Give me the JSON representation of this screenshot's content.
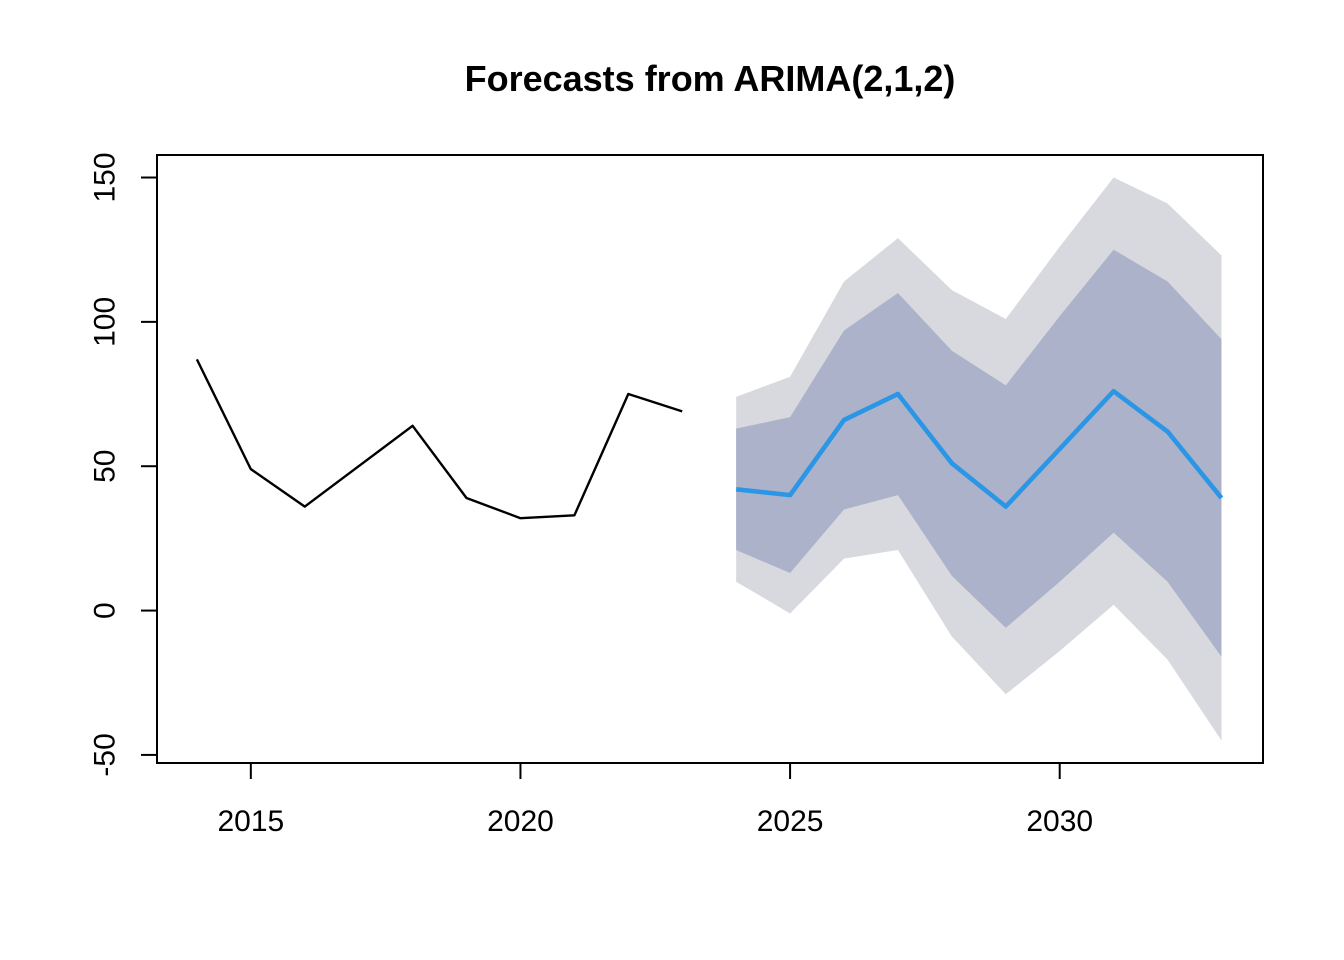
{
  "title": "Forecasts from ARIMA(2,1,2)",
  "colors": {
    "background": "#FFFFFF",
    "historical_line": "#000000",
    "forecast_line": "#2B96E5",
    "interval_80": "#ACB2CA",
    "interval_95": "#D8D8DF",
    "axis": "#000000",
    "tick_label": "#000000"
  },
  "chart_data": {
    "type": "line",
    "title": "Forecasts from ARIMA(2,1,2)",
    "xlabel": "",
    "ylabel": "",
    "grid": false,
    "legend": "none",
    "x_ticks": [
      2015,
      2020,
      2025,
      2030
    ],
    "x_tick_labels": [
      "2015",
      "2020",
      "2025",
      "2030"
    ],
    "y_ticks": [
      -50,
      0,
      50,
      100,
      150
    ],
    "y_tick_labels": [
      "-50",
      "0",
      "50",
      "100",
      "150"
    ],
    "xlim": [
      2013.26,
      2033.77
    ],
    "ylim": [
      -52.8,
      157.8
    ],
    "series": [
      {
        "name": "historical",
        "x": [
          2014,
          2015,
          2016,
          2017,
          2018,
          2019,
          2020,
          2021,
          2022,
          2023
        ],
        "values": [
          87,
          49,
          36,
          50,
          64,
          39,
          32,
          33,
          75,
          69
        ]
      },
      {
        "name": "forecast-mean",
        "x": [
          2024,
          2025,
          2026,
          2027,
          2028,
          2029,
          2030,
          2031,
          2032,
          2033
        ],
        "values": [
          42,
          40,
          66,
          75,
          51,
          36,
          56,
          76,
          62,
          39
        ]
      }
    ],
    "intervals": [
      {
        "name": "95%",
        "x": [
          2024,
          2025,
          2026,
          2027,
          2028,
          2029,
          2030,
          2031,
          2032,
          2033
        ],
        "lower": [
          10,
          -1,
          18,
          21,
          -9,
          -29,
          -14,
          2,
          -17,
          -45
        ],
        "upper": [
          74,
          81,
          114,
          129,
          111,
          101,
          126,
          150,
          141,
          123
        ]
      },
      {
        "name": "80%",
        "x": [
          2024,
          2025,
          2026,
          2027,
          2028,
          2029,
          2030,
          2031,
          2032,
          2033
        ],
        "lower": [
          21,
          13,
          35,
          40,
          12,
          -6,
          10,
          27,
          10,
          -16
        ],
        "upper": [
          63,
          67,
          97,
          110,
          90,
          78,
          102,
          125,
          114,
          94
        ]
      }
    ]
  }
}
